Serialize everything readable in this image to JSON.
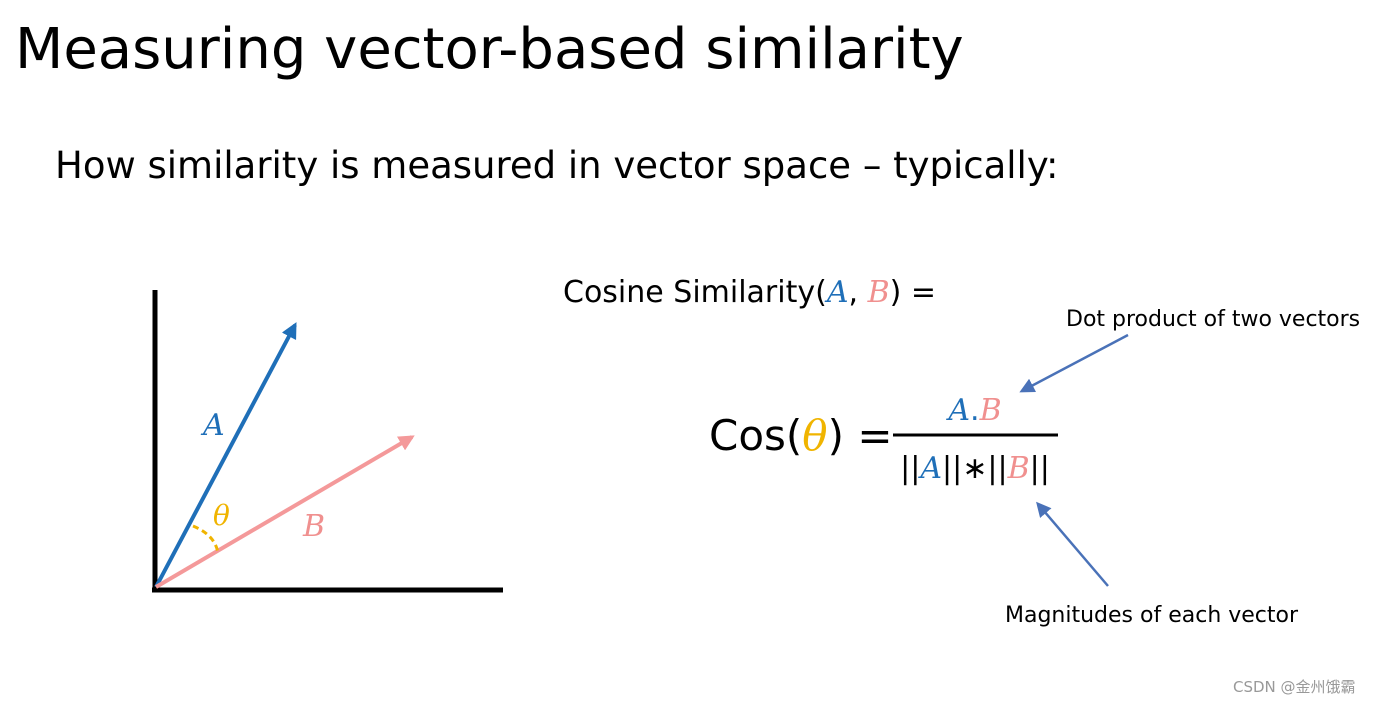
{
  "title": "Measuring vector-based similarity",
  "subtitle": "How similarity is measured in vector space – typically:",
  "definition": {
    "prefix": "Cosine Similarity(",
    "a": "A",
    "separator": ", ",
    "b": "B",
    "suffix": ") ="
  },
  "diagram": {
    "vector_a": "A",
    "vector_b": "B",
    "angle": "θ"
  },
  "formula": {
    "prefix": "Cos(",
    "angle": "θ",
    "suffix": ") =",
    "numerator": {
      "a": "A",
      "dot": ".",
      "b": "B"
    },
    "denominator": {
      "open": "||",
      "a": "A",
      "middle": "||∗||",
      "b": "B",
      "close": "||"
    }
  },
  "annotations": {
    "dot_product": "Dot product of two vectors",
    "magnitudes": "Magnitudes of each vector"
  },
  "watermark": "CSDN @金州饿霸"
}
